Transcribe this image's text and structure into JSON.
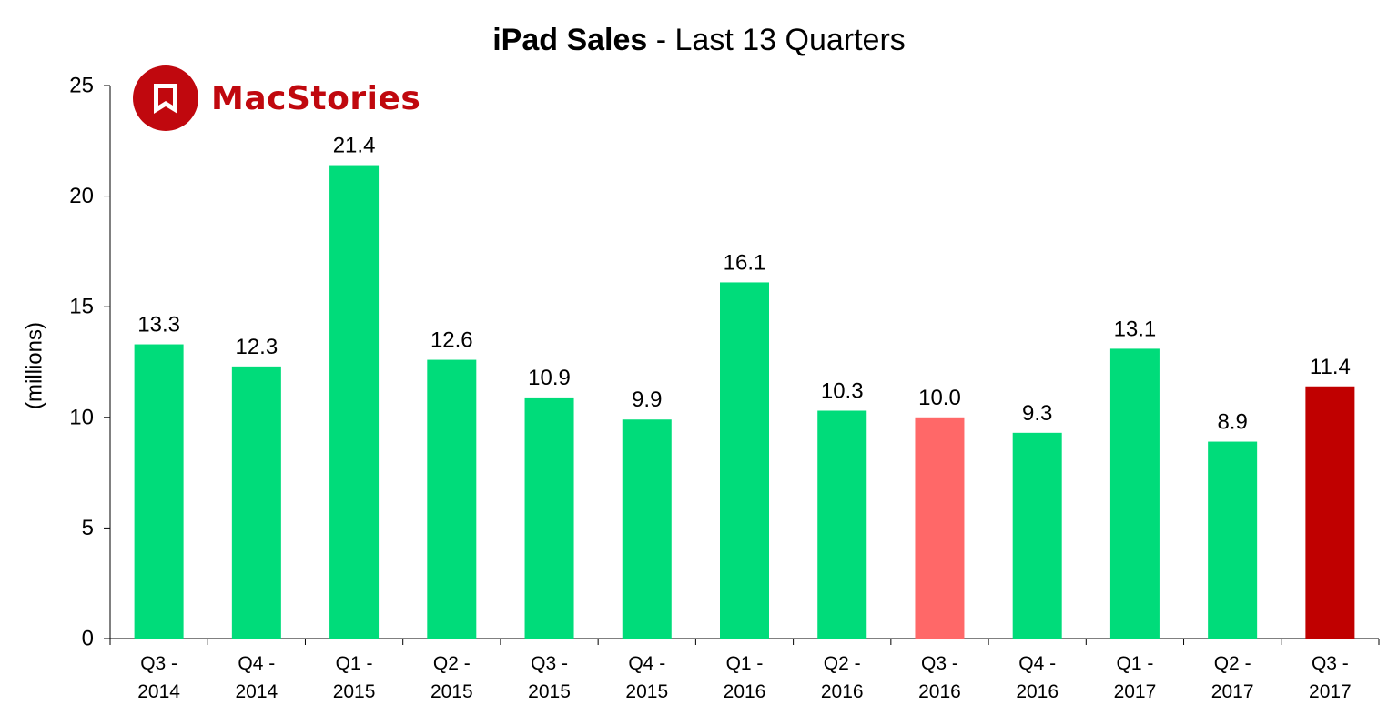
{
  "title_bold": "iPad Sales",
  "title_rest": " - Last 13 Quarters",
  "logo": {
    "text": "MacStories",
    "color": "#c0080e",
    "icon": "bookmark-icon"
  },
  "chart_data": {
    "type": "bar",
    "title": "iPad Sales - Last 13 Quarters",
    "ylabel": "(millions)",
    "xlabel": "",
    "ylim": [
      0,
      25
    ],
    "yticks": [
      0,
      5,
      10,
      15,
      20,
      25
    ],
    "grid": false,
    "categories": [
      [
        "Q3 -",
        "2014"
      ],
      [
        "Q4 -",
        "2014"
      ],
      [
        "Q1 -",
        "2015"
      ],
      [
        "Q2 -",
        "2015"
      ],
      [
        "Q3 -",
        "2015"
      ],
      [
        "Q4 -",
        "2015"
      ],
      [
        "Q1 -",
        "2016"
      ],
      [
        "Q2 -",
        "2016"
      ],
      [
        "Q3 -",
        "2016"
      ],
      [
        "Q4 -",
        "2016"
      ],
      [
        "Q1 -",
        "2017"
      ],
      [
        "Q2 -",
        "2017"
      ],
      [
        "Q3 -",
        "2017"
      ]
    ],
    "values": [
      13.3,
      12.3,
      21.4,
      12.6,
      10.9,
      9.9,
      16.1,
      10.3,
      10.0,
      9.3,
      13.1,
      8.9,
      11.4
    ],
    "value_labels": [
      "13.3",
      "12.3",
      "21.4",
      "12.6",
      "10.9",
      "9.9",
      "16.1",
      "10.3",
      "10.0",
      "9.3",
      "13.1",
      "8.9",
      "11.4"
    ],
    "bar_colors": [
      "#00dc7a",
      "#00dc7a",
      "#00dc7a",
      "#00dc7a",
      "#00dc7a",
      "#00dc7a",
      "#00dc7a",
      "#00dc7a",
      "#ff6868",
      "#00dc7a",
      "#00dc7a",
      "#00dc7a",
      "#c00000"
    ]
  }
}
